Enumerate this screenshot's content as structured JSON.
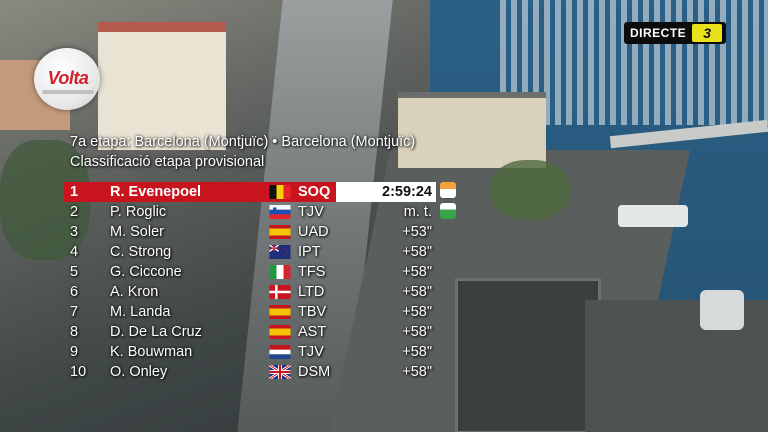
{
  "broadcast": {
    "logo_text": "Volta",
    "live_label": "DIRECTE",
    "channel_badge": "3"
  },
  "stage": {
    "title": "7a etapa: Barcelona (Montjuïc) • Barcelona (Montjuïc)",
    "subtitle": "Classificació etapa provisional"
  },
  "standings": [
    {
      "pos": "1",
      "name": "R. Evenepoel",
      "flag": "belgium-flag",
      "team": "SOQ",
      "gap": "2:59:24"
    },
    {
      "pos": "2",
      "name": "P. Roglic",
      "flag": "slovenia-flag",
      "team": "TJV",
      "gap": "m. t."
    },
    {
      "pos": "3",
      "name": "M. Soler",
      "flag": "spain-flag",
      "team": "UAD",
      "gap": "+53\""
    },
    {
      "pos": "4",
      "name": "C. Strong",
      "flag": "new-zealand-flag",
      "team": "IPT",
      "gap": "+58\""
    },
    {
      "pos": "5",
      "name": "G. Ciccone",
      "flag": "italy-flag",
      "team": "TFS",
      "gap": "+58\""
    },
    {
      "pos": "6",
      "name": "A. Kron",
      "flag": "denmark-flag",
      "team": "LTD",
      "gap": "+58\""
    },
    {
      "pos": "7",
      "name": "M. Landa",
      "flag": "spain-flag",
      "team": "TBV",
      "gap": "+58\""
    },
    {
      "pos": "8",
      "name": "D. De La Cruz",
      "flag": "spain-flag",
      "team": "AST",
      "gap": "+58\""
    },
    {
      "pos": "9",
      "name": "K. Bouwman",
      "flag": "netherlands-flag",
      "team": "TJV",
      "gap": "+58\""
    },
    {
      "pos": "10",
      "name": "O. Onley",
      "flag": "uk-flag",
      "team": "DSM",
      "gap": "+58\""
    }
  ],
  "jerseys": [
    "orange-leader-jersey-icon",
    "green-points-jersey-icon"
  ],
  "colors": {
    "leader_bar": "#c8141d",
    "channel_badge": "#e9e21b"
  }
}
